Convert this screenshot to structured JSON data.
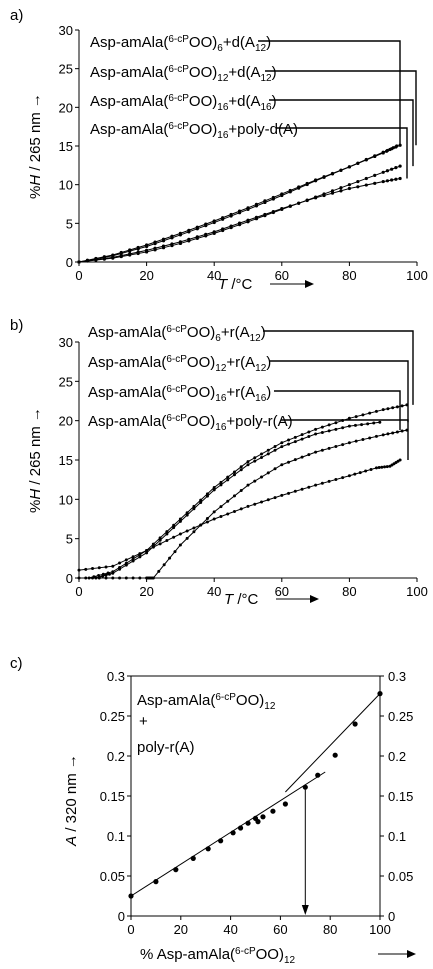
{
  "chart_data": [
    {
      "panel": "a)",
      "type": "line",
      "title": "",
      "xlabel": "T /°C",
      "ylabel": "%H / 265 nm",
      "xlim": [
        0,
        100
      ],
      "ylim": [
        0,
        30
      ],
      "xticks": [
        "0",
        "20",
        "40",
        "60",
        "80",
        "100"
      ],
      "yticks": [
        "0",
        "5",
        "10",
        "15",
        "20",
        "25",
        "30"
      ],
      "grid": false,
      "legend_placement": "top-left, with leader lines to curve ends",
      "series": [
        {
          "name": "Asp-amAla(6-cPOO)6+d(A12)",
          "color": "#000000",
          "x": [
            0,
            10,
            20,
            30,
            40,
            50,
            60,
            70,
            80,
            90,
            94
          ],
          "y": [
            0,
            0.9,
            2.2,
            3.7,
            5.3,
            7.0,
            8.8,
            10.6,
            12.3,
            14.1,
            15.0
          ]
        },
        {
          "name": "Asp-amAla(6-cPOO)12+d(A12)",
          "color": "#000000",
          "x": [
            0,
            10,
            20,
            30,
            40,
            50,
            60,
            70,
            80,
            90,
            95
          ],
          "y": [
            0,
            0.8,
            2.0,
            3.5,
            5.1,
            6.8,
            8.6,
            10.5,
            12.3,
            14.2,
            15.1
          ]
        },
        {
          "name": "Asp-amAla(6-cPOO)16+d(A16)",
          "color": "#000000",
          "x": [
            0,
            10,
            20,
            30,
            40,
            50,
            60,
            70,
            80,
            90,
            95
          ],
          "y": [
            0,
            0.5,
            1.3,
            2.4,
            3.7,
            5.2,
            6.8,
            8.4,
            10.0,
            11.6,
            12.4
          ]
        },
        {
          "name": "Asp-amAla(6-cPOO)16+poly-d(A)",
          "color": "#000000",
          "x": [
            0,
            10,
            20,
            30,
            40,
            50,
            60,
            70,
            80,
            90,
            95
          ],
          "y": [
            0,
            0.6,
            1.5,
            2.6,
            3.9,
            5.4,
            6.9,
            8.3,
            9.5,
            10.4,
            10.8
          ]
        }
      ]
    },
    {
      "panel": "b)",
      "type": "line",
      "title": "",
      "xlabel": "T /°C",
      "ylabel": "%H / 265 nm",
      "xlim": [
        0,
        100
      ],
      "ylim": [
        0,
        30
      ],
      "xticks": [
        "0",
        "20",
        "40",
        "60",
        "80",
        "100"
      ],
      "yticks": [
        "0",
        "5",
        "10",
        "15",
        "20",
        "25",
        "30"
      ],
      "grid": false,
      "legend_placement": "top, with leader lines to curve ends",
      "series": [
        {
          "name": "Asp-amAla(6-cPOO)6+r(A12)",
          "color": "#000000",
          "x": [
            3,
            10,
            20,
            30,
            40,
            50,
            60,
            70,
            80,
            90,
            97
          ],
          "y": [
            0,
            0.8,
            3.5,
            7.5,
            11.5,
            14.8,
            17.2,
            18.9,
            20.3,
            21.4,
            22.0
          ]
        },
        {
          "name": "Asp-amAla(6-cPOO)12+r(A12)",
          "color": "#000000",
          "x": [
            5,
            10,
            20,
            30,
            40,
            50,
            60,
            70,
            80,
            89
          ],
          "y": [
            0,
            0.6,
            3.2,
            7.2,
            11.2,
            14.4,
            16.7,
            18.3,
            19.3,
            19.8
          ]
        },
        {
          "name": "Asp-amAla(6-cPOO)16+r(A16)",
          "color": "#000000",
          "x": [
            0,
            10,
            20,
            22,
            30,
            40,
            50,
            60,
            70,
            80,
            90,
            97
          ],
          "y": [
            0,
            0,
            0,
            0,
            4.2,
            8.4,
            11.8,
            14.4,
            16.0,
            17.2,
            18.2,
            18.8
          ]
        },
        {
          "name": "Asp-amAla(6-cPOO)16+poly-r(A)",
          "color": "#000000",
          "x": [
            0,
            10,
            20,
            30,
            40,
            50,
            60,
            70,
            80,
            88,
            92,
            95
          ],
          "y": [
            1.0,
            1.5,
            3.5,
            5.6,
            7.5,
            9.1,
            10.5,
            11.8,
            13.0,
            14.0,
            14.2,
            15.0
          ]
        }
      ]
    },
    {
      "panel": "c)",
      "type": "scatter",
      "title": "",
      "xlabel": "% Asp-amAla(6-cPOO)12",
      "ylabel": "A / 320 nm",
      "xlim": [
        0,
        100
      ],
      "ylim": [
        0,
        0.3
      ],
      "xticks": [
        "0",
        "20",
        "40",
        "60",
        "80",
        "100"
      ],
      "yticks": [
        "0",
        "0.05",
        "0.1",
        "0.15",
        "0.2",
        "0.25",
        "0.3"
      ],
      "right_yticks": [
        "0",
        "0.05",
        "0.1",
        "0.15",
        "0.2",
        "0.25",
        "0.3"
      ],
      "grid": false,
      "annotation": "Asp-amAla(6-cPOO)12 + poly-r(A)",
      "break_point_x": 70,
      "series": [
        {
          "name": "Asp-amAla(6-cPOO)12 + poly-r(A)",
          "color": "#000000",
          "x": [
            0,
            10,
            18,
            25,
            31,
            36,
            41,
            44,
            47,
            50,
            51,
            53,
            57,
            62,
            70,
            75,
            82,
            90,
            100
          ],
          "y": [
            0.025,
            0.043,
            0.058,
            0.072,
            0.084,
            0.094,
            0.104,
            0.11,
            0.116,
            0.122,
            0.118,
            0.124,
            0.131,
            0.14,
            0.161,
            0.176,
            0.201,
            0.24,
            0.278
          ]
        }
      ],
      "fit_lines": [
        {
          "x": [
            0,
            78
          ],
          "y": [
            0.025,
            0.18
          ]
        },
        {
          "x": [
            62,
            100
          ],
          "y": [
            0.155,
            0.278
          ]
        }
      ]
    }
  ]
}
